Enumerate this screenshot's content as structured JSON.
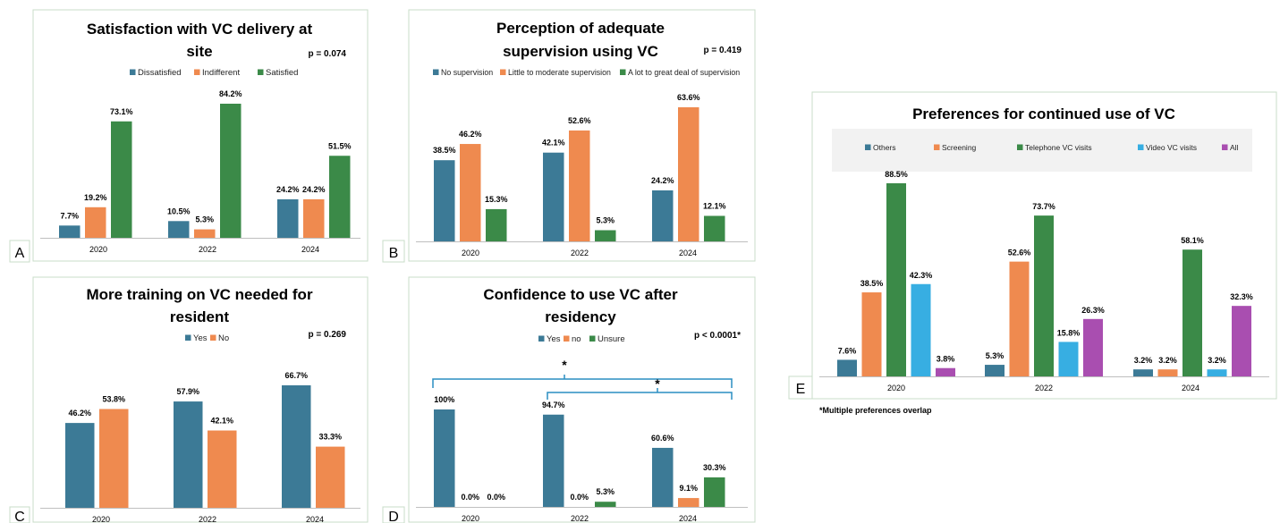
{
  "colors": {
    "blue": "#3c7a96",
    "orange": "#ef8a4f",
    "green": "#3b8a48",
    "cyan": "#37aee2",
    "purple": "#a94eb0",
    "frame": "#c8dcc8",
    "axis": "#bfbfbf",
    "legend_bg": "#f2f2f2"
  },
  "footnote": "*Multiple preferences overlap",
  "chart_data": [
    {
      "id": "A",
      "type": "bar",
      "panel_label": "A",
      "title_lines": [
        "Satisfaction with VC delivery at",
        "site"
      ],
      "pvalue": "p = 0.074",
      "categories": [
        "2020",
        "2022",
        "2024"
      ],
      "ylim": [
        0,
        100
      ],
      "series": [
        {
          "name": "Dissatisfied",
          "color": "#3c7a96",
          "values": [
            7.7,
            10.5,
            24.2
          ],
          "labels": [
            "7.7%",
            "10.5%",
            "24.2%"
          ]
        },
        {
          "name": "Indifferent",
          "color": "#ef8a4f",
          "values": [
            19.2,
            5.3,
            24.2
          ],
          "labels": [
            "19.2%",
            "5.3%",
            "24.2%"
          ]
        },
        {
          "name": "Satisfied",
          "color": "#3b8a48",
          "values": [
            73.1,
            84.2,
            51.5
          ],
          "labels": [
            "73.1%",
            "84.2%",
            "51.5%"
          ]
        }
      ]
    },
    {
      "id": "B",
      "type": "bar",
      "panel_label": "B",
      "title_lines": [
        "Perception of adequate",
        "supervision using VC"
      ],
      "pvalue": "p = 0.419",
      "categories": [
        "2020",
        "2022",
        "2024"
      ],
      "ylim": [
        0,
        100
      ],
      "series": [
        {
          "name": "No supervision",
          "color": "#3c7a96",
          "values": [
            38.5,
            42.1,
            24.2
          ],
          "labels": [
            "38.5%",
            "42.1%",
            "24.2%"
          ]
        },
        {
          "name": "Little to moderate supervision",
          "color": "#ef8a4f",
          "values": [
            46.2,
            52.6,
            63.6
          ],
          "labels": [
            "46.2%",
            "52.6%",
            "63.6%"
          ]
        },
        {
          "name": "A lot to great deal of supervision",
          "color": "#3b8a48",
          "values": [
            15.3,
            5.3,
            12.1
          ],
          "labels": [
            "15.3%",
            "5.3%",
            "12.1%"
          ]
        }
      ]
    },
    {
      "id": "C",
      "type": "bar",
      "panel_label": "C",
      "title_lines": [
        "More training on VC needed for",
        "resident"
      ],
      "pvalue": "p = 0.269",
      "categories": [
        "2020",
        "2022",
        "2024"
      ],
      "ylim": [
        0,
        100
      ],
      "series": [
        {
          "name": "Yes",
          "color": "#3c7a96",
          "values": [
            46.2,
            57.9,
            66.7
          ],
          "labels": [
            "46.2%",
            "57.9%",
            "66.7%"
          ]
        },
        {
          "name": "No",
          "color": "#ef8a4f",
          "values": [
            53.8,
            42.1,
            33.3
          ],
          "labels": [
            "53.8%",
            "42.1%",
            "33.3%"
          ]
        }
      ]
    },
    {
      "id": "D",
      "type": "bar",
      "panel_label": "D",
      "title_lines": [
        "Confidence to use VC after",
        "residency"
      ],
      "pvalue": "p < 0.0001*",
      "categories": [
        "2020",
        "2022",
        "2024"
      ],
      "ylim": [
        0,
        100
      ],
      "brackets": [
        {
          "from": 0,
          "to": 2,
          "label": "*"
        },
        {
          "from": 1,
          "to": 2,
          "label": "*"
        }
      ],
      "series": [
        {
          "name": "Yes",
          "color": "#3c7a96",
          "values": [
            100,
            94.7,
            60.6
          ],
          "labels": [
            "100%",
            "94.7%",
            "60.6%"
          ]
        },
        {
          "name": "no",
          "color": "#ef8a4f",
          "values": [
            0.0,
            0.0,
            9.1
          ],
          "labels": [
            "0.0%",
            "0.0%",
            "9.1%"
          ]
        },
        {
          "name": "Unsure",
          "color": "#3b8a48",
          "values": [
            0.0,
            5.3,
            30.3
          ],
          "labels": [
            "0.0%",
            "5.3%",
            "30.3%"
          ]
        }
      ]
    },
    {
      "id": "E",
      "type": "bar",
      "panel_label": "E",
      "title_lines": [
        "Preferences for continued use of VC"
      ],
      "pvalue": "",
      "categories": [
        "2020",
        "2022",
        "2024"
      ],
      "ylim": [
        0,
        100
      ],
      "series": [
        {
          "name": "Others",
          "color": "#3c7a96",
          "values": [
            7.6,
            5.3,
            3.2
          ],
          "labels": [
            "7.6%",
            "5.3%",
            "3.2%"
          ]
        },
        {
          "name": "Screening",
          "color": "#ef8a4f",
          "values": [
            38.5,
            52.6,
            3.2
          ],
          "labels": [
            "38.5%",
            "52.6%",
            "3.2%"
          ]
        },
        {
          "name": "Telephone VC visits",
          "color": "#3b8a48",
          "values": [
            88.5,
            73.7,
            58.1
          ],
          "labels": [
            "88.5%",
            "73.7%",
            "58.1%"
          ]
        },
        {
          "name": "Video VC visits",
          "color": "#37aee2",
          "values": [
            42.3,
            15.8,
            3.2
          ],
          "labels": [
            "42.3%",
            "15.8%",
            "3.2%"
          ]
        },
        {
          "name": "All",
          "color": "#a94eb0",
          "values": [
            3.8,
            26.3,
            32.3
          ],
          "labels": [
            "3.8%",
            "26.3%",
            "32.3%"
          ]
        }
      ]
    }
  ]
}
